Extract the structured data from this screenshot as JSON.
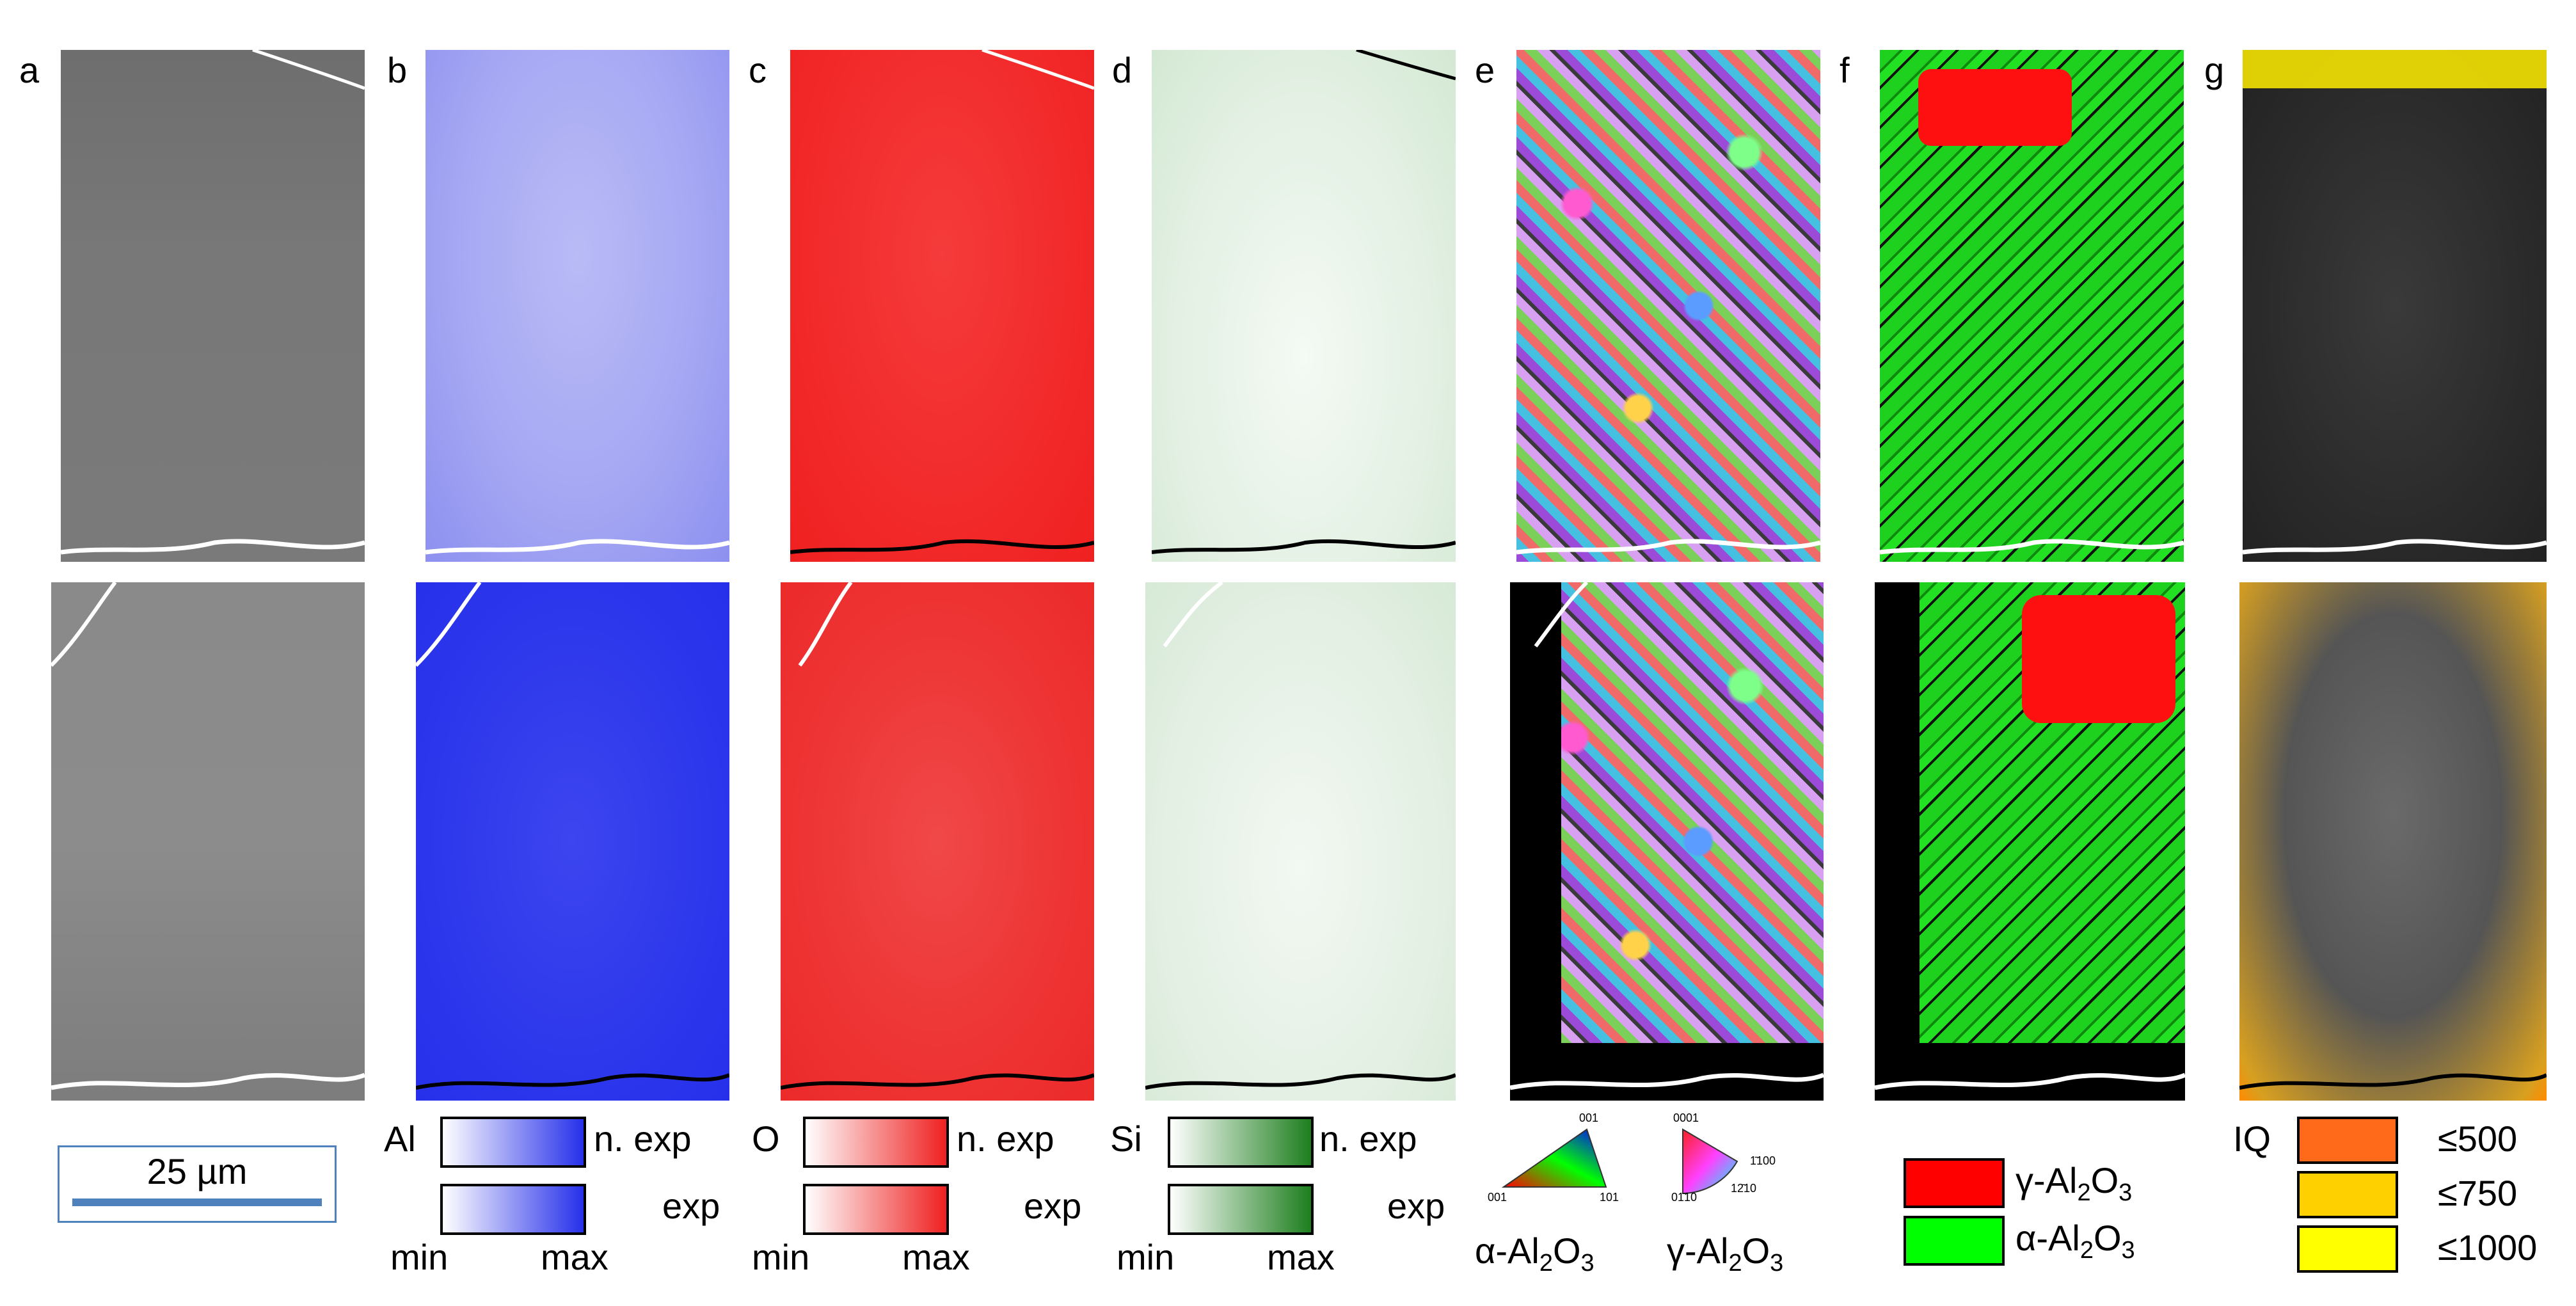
{
  "panels": [
    "a",
    "b",
    "c",
    "d",
    "e",
    "f",
    "g"
  ],
  "scale_bar": {
    "label": "25 µm",
    "color": "#4f81bd"
  },
  "element_legends": [
    {
      "element": "Al",
      "color": "#2630ea",
      "top_label": "n. exp",
      "bottom_label": "exp",
      "min": "min",
      "max": "max"
    },
    {
      "element": "O",
      "color": "#ef2020",
      "top_label": "n. exp",
      "bottom_label": "exp",
      "min": "min",
      "max": "max"
    },
    {
      "element": "Si",
      "color": "#1e7f1e",
      "top_label": "n. exp",
      "bottom_label": "exp",
      "min": "min",
      "max": "max"
    }
  ],
  "ipf_legend": {
    "alpha": {
      "name_prefix": "α-Al",
      "sub1": "2",
      "mid": "O",
      "sub2": "3",
      "corners": [
        "001",
        "001",
        "101"
      ]
    },
    "gamma": {
      "name_prefix": "γ-Al",
      "sub1": "2",
      "mid": "O",
      "sub2": "3",
      "corners": [
        "0001",
        "01̄10",
        "1̄100",
        "12̄10"
      ]
    }
  },
  "phase_legend": [
    {
      "prefix": "γ-Al",
      "sub1": "2",
      "mid": "O",
      "sub2": "3",
      "color": "#ff0000"
    },
    {
      "prefix": "α-Al",
      "sub1": "2",
      "mid": "O",
      "sub2": "3",
      "color": "#00ff00"
    }
  ],
  "iq_legend": {
    "title": "IQ",
    "items": [
      {
        "label": "≤500",
        "color": "#ff6a1a"
      },
      {
        "label": "≤750",
        "color": "#ffd000"
      },
      {
        "label": "≤1000",
        "color": "#ffff00"
      }
    ]
  }
}
